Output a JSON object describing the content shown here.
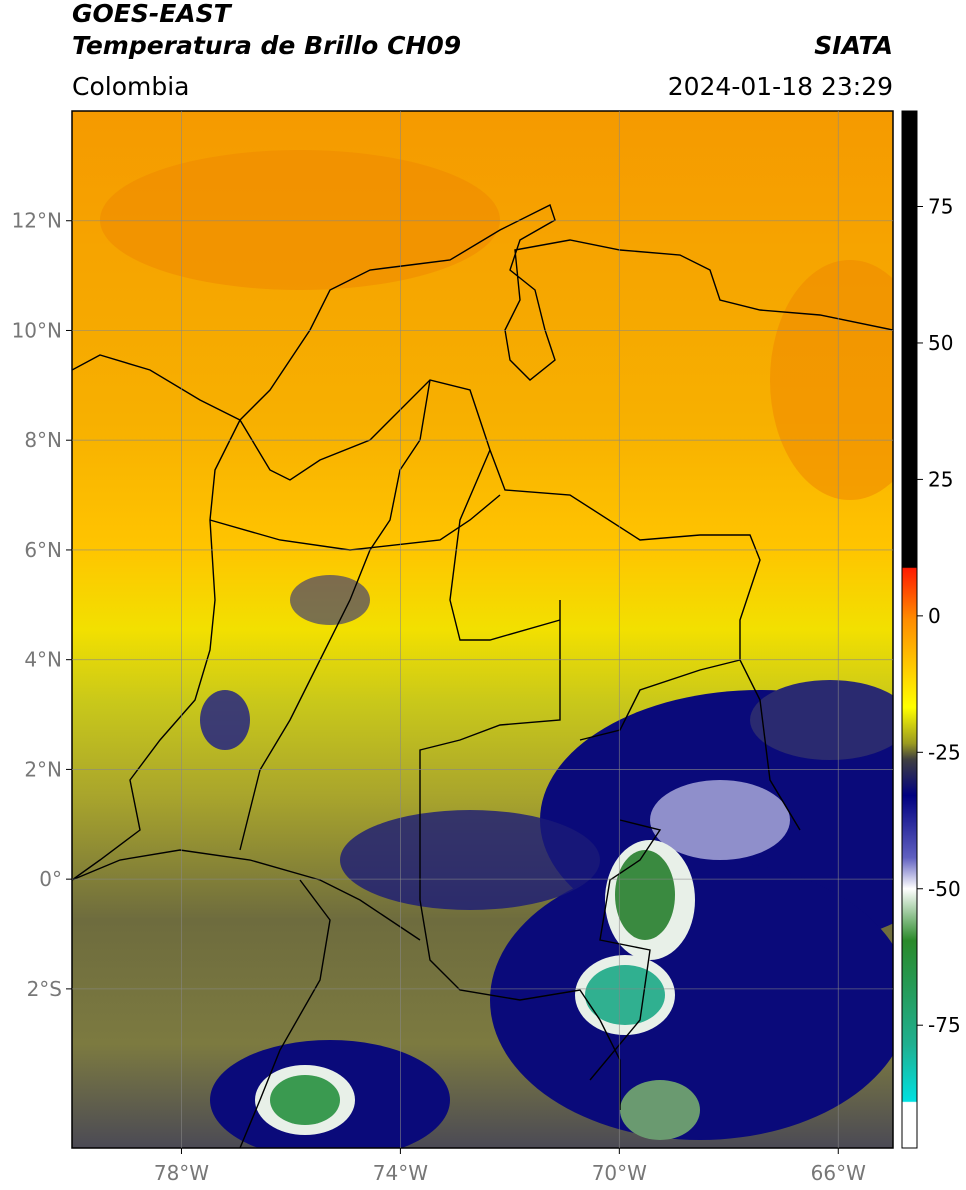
{
  "header": {
    "title": "GOES-EAST",
    "subtitle": "Temperatura de Brillo CH09",
    "source": "SIATA",
    "region": "Colombia",
    "datetime": "2024-01-18 23:29"
  },
  "map": {
    "lonlim": [
      -80,
      -65
    ],
    "latlim": [
      -4.9,
      14
    ],
    "lonticks": [
      {
        "value": -78,
        "label": "78°W"
      },
      {
        "value": -74,
        "label": "74°W"
      },
      {
        "value": -70,
        "label": "70°W"
      },
      {
        "value": -66,
        "label": "66°W"
      }
    ],
    "latticks": [
      {
        "value": 12,
        "label": "12°N"
      },
      {
        "value": 10,
        "label": "10°N"
      },
      {
        "value": 8,
        "label": "8°N"
      },
      {
        "value": 6,
        "label": "6°N"
      },
      {
        "value": 4,
        "label": "4°N"
      },
      {
        "value": 2,
        "label": "2°N"
      },
      {
        "value": 0,
        "label": "0°"
      },
      {
        "value": -2,
        "label": "2°S"
      }
    ],
    "grid": true
  },
  "colorbar": {
    "lim": [
      -97.5,
      92.5
    ],
    "ticks": [
      75,
      50,
      25,
      0,
      -25,
      -50,
      -75
    ]
  }
}
